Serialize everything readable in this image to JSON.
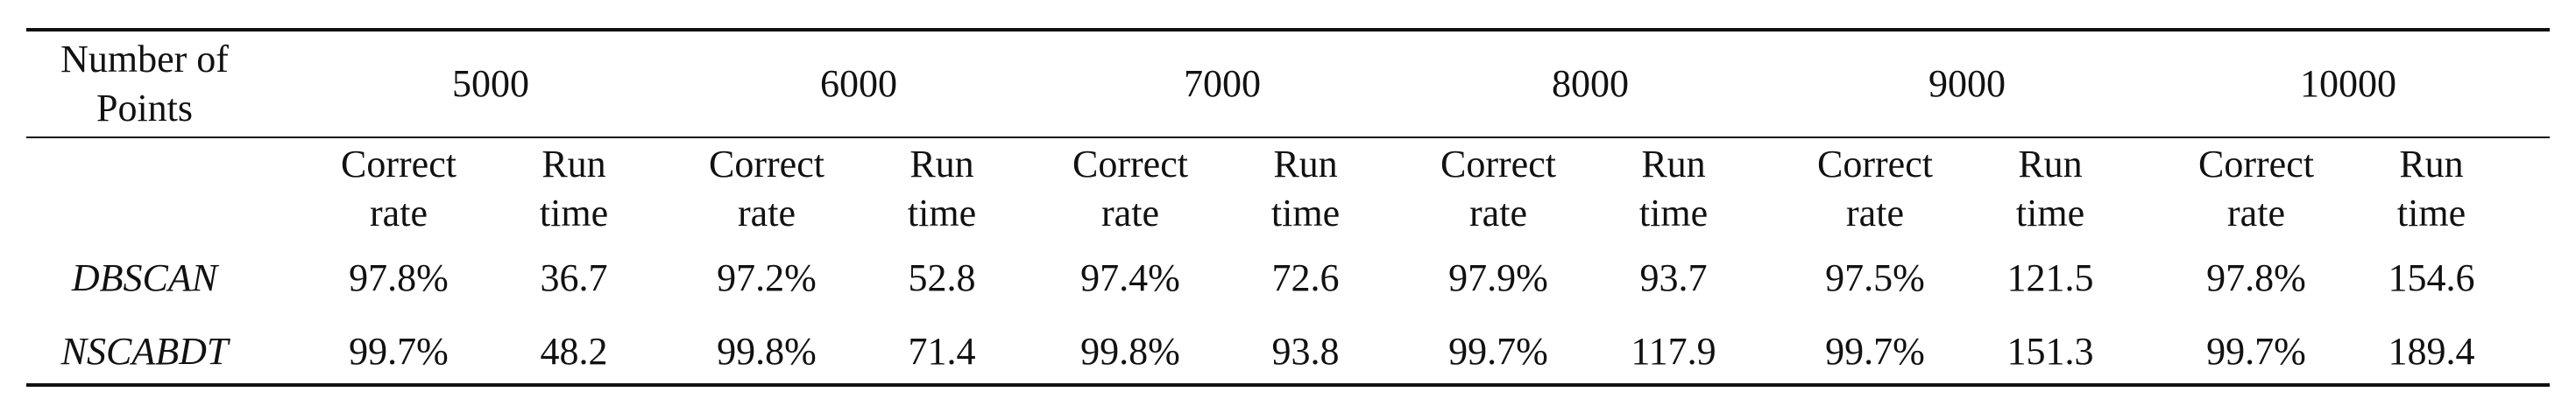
{
  "table": {
    "corner_header": {
      "line1": "Number of",
      "line2": "Points"
    },
    "point_counts": [
      "5000",
      "6000",
      "7000",
      "8000",
      "9000",
      "10000"
    ],
    "metric_headers": {
      "correct": {
        "line1": "Correct",
        "line2": "rate"
      },
      "runtime": {
        "line1": "Run",
        "line2": "time"
      }
    },
    "rows": [
      {
        "method": "DBSCAN",
        "values": [
          "97.8%",
          "36.7",
          "97.2%",
          "52.8",
          "97.4%",
          "72.6",
          "97.9%",
          "93.7",
          "97.5%",
          "121.5",
          "97.8%",
          "154.6"
        ]
      },
      {
        "method": "NSCABDT",
        "values": [
          "99.7%",
          "48.2",
          "99.8%",
          "71.4",
          "99.8%",
          "93.8",
          "99.7%",
          "117.9",
          "99.7%",
          "151.3",
          "99.7%",
          "189.4"
        ]
      }
    ]
  }
}
